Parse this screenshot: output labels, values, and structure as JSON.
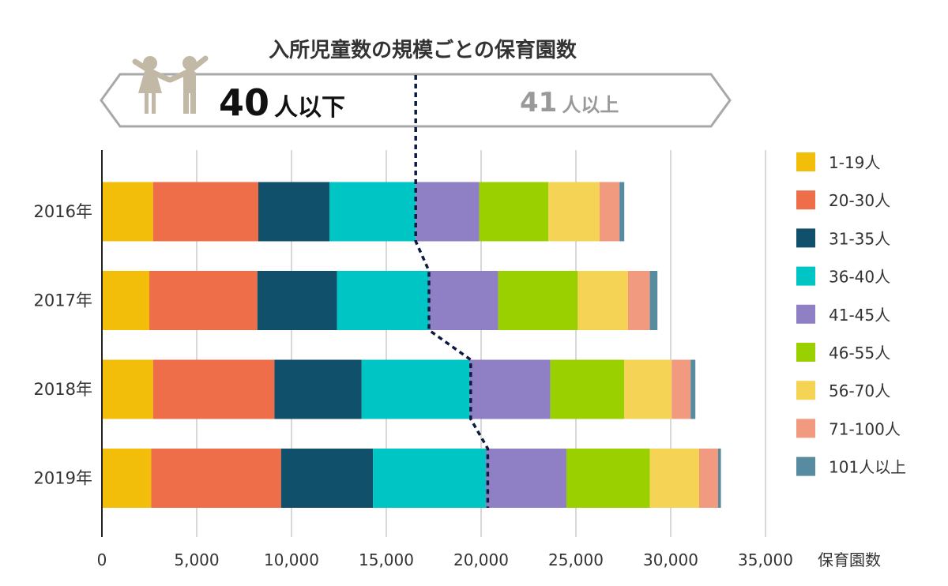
{
  "chart_data": {
    "type": "bar",
    "orientation": "horizontal",
    "stacked": true,
    "title": "入所児童数の規模ごとの保育園数",
    "xlabel": "保育園数",
    "xlim": [
      0,
      35000
    ],
    "xticks": [
      "0",
      "5,000",
      "10,000",
      "15,000",
      "20,000",
      "25,000",
      "30,000",
      "35,000"
    ],
    "categories": [
      "2016年",
      "2017年",
      "2018年",
      "2019年"
    ],
    "series": [
      {
        "name": "1-19人",
        "color": "#F2BE0A",
        "values": [
          2700,
          2500,
          2700,
          2600
        ]
      },
      {
        "name": "20-30人",
        "color": "#EE6E4A",
        "values": [
          5550,
          5700,
          6400,
          6850
        ]
      },
      {
        "name": "31-35人",
        "color": "#11506A",
        "values": [
          3750,
          4200,
          4600,
          4850
        ]
      },
      {
        "name": "36-40人",
        "color": "#00C5C5",
        "values": [
          4550,
          4850,
          5700,
          5950
        ]
      },
      {
        "name": "41-45人",
        "color": "#8F7FC5",
        "values": [
          3350,
          3650,
          4250,
          4250
        ]
      },
      {
        "name": "46-55人",
        "color": "#9BD000",
        "values": [
          3650,
          4200,
          3900,
          4400
        ]
      },
      {
        "name": "56-70人",
        "color": "#F5D355",
        "values": [
          2700,
          2650,
          2500,
          2600
        ]
      },
      {
        "name": "71-100人",
        "color": "#F29A80",
        "values": [
          1050,
          1150,
          1000,
          1000
        ]
      },
      {
        "name": "101人以上",
        "color": "#578BA0",
        "values": [
          250,
          400,
          250,
          150
        ]
      }
    ],
    "threshold_line": {
      "style": "dashed",
      "values": [
        16550,
        17250,
        19450,
        20350
      ]
    },
    "banner": {
      "left_number": "40",
      "left_unit": "人以下",
      "right_number": "41",
      "right_unit": "人以上"
    },
    "grid": true,
    "legend_position": "right"
  }
}
